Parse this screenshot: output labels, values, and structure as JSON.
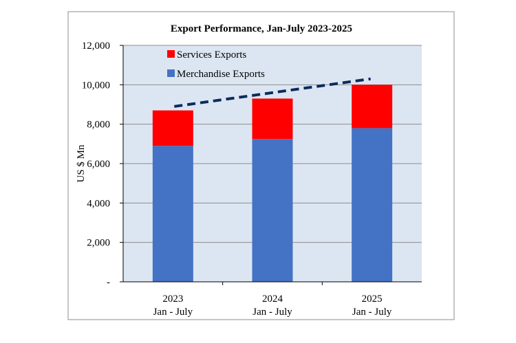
{
  "chart_data": {
    "type": "bar",
    "stacked": true,
    "title": "Export Performance, Jan-July 2023-2025",
    "ylabel": "US $ Mn",
    "xlabel": "",
    "categories": [
      {
        "year": "2023",
        "period": "Jan - July"
      },
      {
        "year": "2024",
        "period": "Jan - July"
      },
      {
        "year": "2025",
        "period": "Jan - July"
      }
    ],
    "series": [
      {
        "name": "Merchandise Exports",
        "color": "#4472C4",
        "values": [
          6900,
          7250,
          7800
        ]
      },
      {
        "name": "Services Exports",
        "color": "#FF0000",
        "values": [
          1800,
          2050,
          2200
        ]
      }
    ],
    "ylim": [
      0,
      12000
    ],
    "yticks": [
      {
        "value": 0,
        "label": "-"
      },
      {
        "value": 2000,
        "label": "2,000"
      },
      {
        "value": 4000,
        "label": "4,000"
      },
      {
        "value": 6000,
        "label": "6,000"
      },
      {
        "value": 8000,
        "label": "8,000"
      },
      {
        "value": 10000,
        "label": "10,000"
      },
      {
        "value": 12000,
        "label": "12,000"
      }
    ],
    "trendline": {
      "style": "dashed",
      "color": "#0B2A5E",
      "from": 8900,
      "to": 10300
    },
    "grid": true,
    "plot_background": "#DCE6F2",
    "legend": "top-left inside plot"
  }
}
